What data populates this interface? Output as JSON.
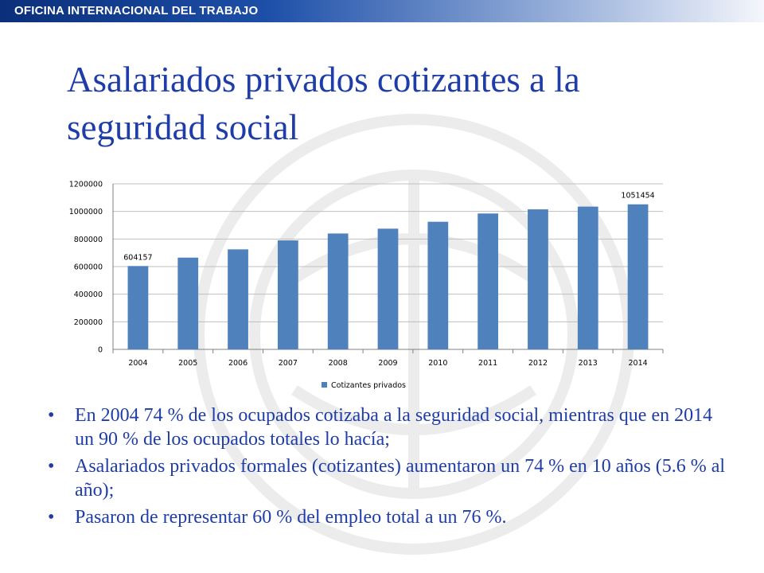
{
  "header": {
    "org_name": "OFICINA INTERNACIONAL DEL TRABAJO"
  },
  "slide": {
    "title": "Asalariados privados cotizantes a la seguridad social",
    "bullets": [
      "En 2004 74 % de los ocupados cotizaba a la seguridad social, mientras que en 2014 un 90 % de los ocupados totales lo hacía;",
      "Asalariados privados formales (cotizantes) aumentaron un 74 % en 10 años (5.6 % al año);",
      "Pasaron de representar 60 % del empleo total a un 76 %."
    ]
  },
  "colors": {
    "title": "#1f3da8",
    "bar": "#4f81bd",
    "header": "#1d4fa8"
  },
  "chart_data": {
    "type": "bar",
    "categories": [
      "2004",
      "2005",
      "2006",
      "2007",
      "2008",
      "2009",
      "2010",
      "2011",
      "2012",
      "2013",
      "2014"
    ],
    "series": [
      {
        "name": "Cotizantes privados",
        "values": [
          604157,
          665000,
          725000,
          790000,
          840000,
          875000,
          925000,
          985000,
          1015000,
          1035000,
          1051454
        ]
      }
    ],
    "data_labels": {
      "0": "604157",
      "10": "1051454"
    },
    "ylim": [
      0,
      1200000
    ],
    "yticks": [
      0,
      200000,
      400000,
      600000,
      800000,
      1000000,
      1200000
    ],
    "grid": true,
    "legend": "bottom",
    "title": "",
    "xlabel": "",
    "ylabel": ""
  }
}
